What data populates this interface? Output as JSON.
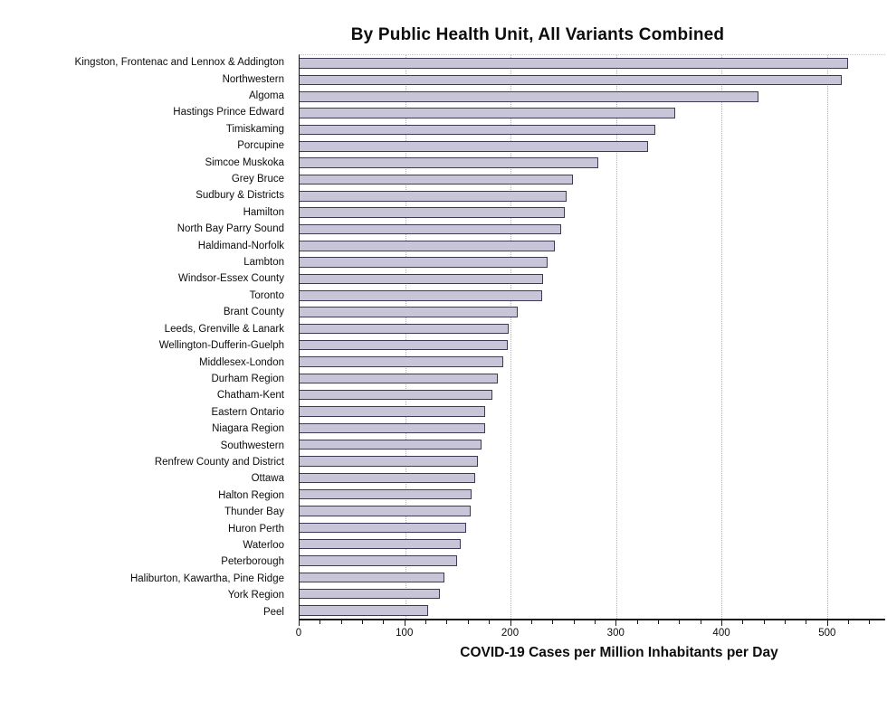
{
  "title": "By Public Health Unit, All Variants Combined",
  "x_axis_title": "COVID-19 Cases per Million Inhabitants per Day",
  "chart_data": {
    "type": "bar",
    "orientation": "horizontal",
    "title": "By Public Health Unit, All Variants Combined",
    "xlabel": "COVID-19 Cases per Million Inhabitants per Day",
    "ylabel": "",
    "xlim": [
      0,
      555
    ],
    "x_major_ticks": [
      0,
      100,
      200,
      300,
      400,
      500
    ],
    "x_minor_tick_step": 20,
    "grid": "vertical dotted at major ticks",
    "legend": "none",
    "bar_fill_color": "#c9c5d8",
    "bar_border_color": "#3e3a55",
    "categories": [
      "Kingston, Frontenac and Lennox & Addington",
      "Northwestern",
      "Algoma",
      "Hastings Prince Edward",
      "Timiskaming",
      "Porcupine",
      "Simcoe Muskoka",
      "Grey Bruce",
      "Sudbury & Districts",
      "Hamilton",
      "North Bay Parry Sound",
      "Haldimand-Norfolk",
      "Lambton",
      "Windsor-Essex County",
      "Toronto",
      "Brant County",
      "Leeds, Grenville & Lanark",
      "Wellington-Dufferin-Guelph",
      "Middlesex-London",
      "Durham Region",
      "Chatham-Kent",
      "Eastern Ontario",
      "Niagara Region",
      "Southwestern",
      "Renfrew County and District",
      "Ottawa",
      "Halton Region",
      "Thunder Bay",
      "Huron Perth",
      "Waterloo",
      "Peterborough",
      "Haliburton, Kawartha, Pine Ridge",
      "York Region",
      "Peel"
    ],
    "values": [
      520,
      514,
      435,
      356,
      337,
      330,
      283,
      259,
      253,
      251,
      248,
      242,
      235,
      231,
      230,
      207,
      198,
      197,
      193,
      188,
      183,
      176,
      176,
      172,
      169,
      166,
      163,
      162,
      158,
      153,
      149,
      137,
      133,
      122
    ]
  }
}
